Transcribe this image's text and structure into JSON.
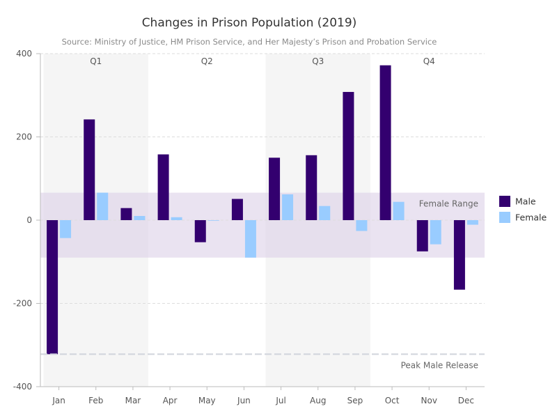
{
  "chart_data": {
    "type": "bar",
    "title": "Changes in Prison Population (2019)",
    "subtitle": "Source: Ministry of Justice, HM Prison Service, and Her Majesty’s Prison and Probation Service",
    "categories": [
      "Jan",
      "Feb",
      "Mar",
      "Apr",
      "May",
      "Jun",
      "Jul",
      "Aug",
      "Sep",
      "Oct",
      "Nov",
      "Dec"
    ],
    "series": [
      {
        "name": "Male",
        "color": "#33006f",
        "values": [
          -322,
          242,
          29,
          158,
          -53,
          51,
          150,
          156,
          308,
          372,
          -75,
          -167
        ]
      },
      {
        "name": "Female",
        "color": "#99ccff",
        "values": [
          -43,
          66,
          10,
          7,
          -1,
          -90,
          62,
          34,
          -26,
          44,
          -58,
          -11
        ]
      }
    ],
    "ylim": [
      -400,
      400
    ],
    "yticks": [
      -400,
      -200,
      0,
      200,
      400
    ],
    "ytick_labels": [
      "-400",
      "-200",
      "0",
      "200",
      "400"
    ],
    "grid": true,
    "legend": "right",
    "quarters": [
      {
        "label": "Q1",
        "months": [
          "Jan",
          "Mar"
        ],
        "shaded": true
      },
      {
        "label": "Q2",
        "months": [
          "Apr",
          "Jun"
        ],
        "shaded": false
      },
      {
        "label": "Q3",
        "months": [
          "Jul",
          "Sep"
        ],
        "shaded": true
      },
      {
        "label": "Q4",
        "months": [
          "Oct",
          "Dec"
        ],
        "shaded": false
      }
    ],
    "bands": [
      {
        "label": "Female Range",
        "from": -90,
        "to": 66,
        "color": "#d9cce6"
      }
    ],
    "lines": [
      {
        "label": "Peak Male Release",
        "value": -322,
        "color": "#d0d4dc"
      }
    ]
  }
}
